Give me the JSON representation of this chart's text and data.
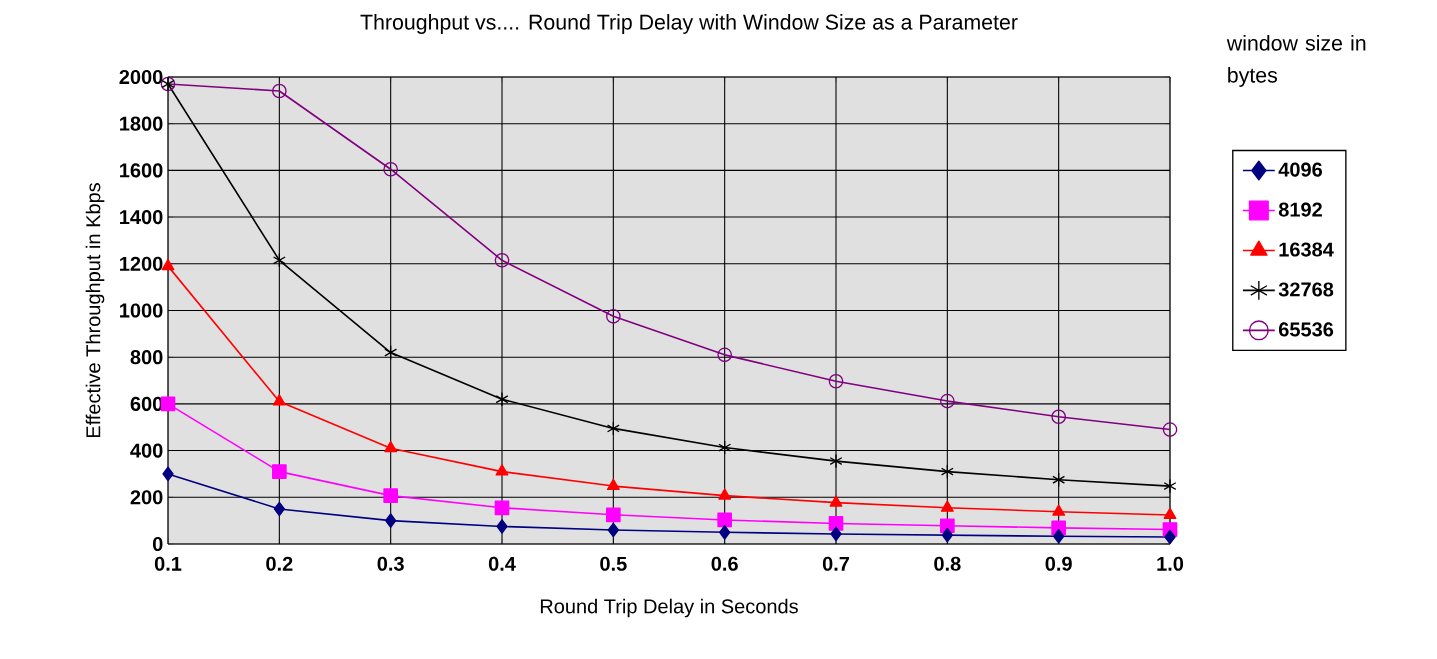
{
  "chart_data": {
    "type": "line",
    "title": "Throughput vs.... Round Trip Delay with Window Size as a Parameter",
    "xlabel": "Round Trip Delay in Seconds",
    "ylabel": "Effective Throughput in Kbps",
    "legend_title": "window size in bytes",
    "legend": "right",
    "grid": true,
    "x": [
      0.1,
      0.2,
      0.3,
      0.4,
      0.5,
      0.6,
      0.7,
      0.8,
      0.9,
      1.0
    ],
    "xlim": [
      0.1,
      1.0
    ],
    "xticks": [
      0.1,
      0.2,
      0.3,
      0.4,
      0.5,
      0.6,
      0.7,
      0.8,
      0.9,
      {
        "value": 1.0,
        "label": "1.0"
      }
    ],
    "ylim": [
      0,
      2000
    ],
    "yticks": [
      0,
      200,
      400,
      600,
      800,
      1000,
      1200,
      1400,
      1600,
      1800,
      2000
    ],
    "series": [
      {
        "name": "4096",
        "color": "#000080",
        "marker": "diamond",
        "values": [
          300,
          150,
          100,
          75,
          60,
          50,
          43,
          38,
          33,
          30
        ]
      },
      {
        "name": "8192",
        "color": "#ff00ff",
        "marker": "square",
        "values": [
          600,
          310,
          207,
          155,
          125,
          103,
          88,
          78,
          69,
          62
        ]
      },
      {
        "name": "16384",
        "color": "#ff0000",
        "marker": "triangle",
        "values": [
          1190,
          610,
          410,
          310,
          248,
          207,
          177,
          155,
          138,
          124
        ]
      },
      {
        "name": "32768",
        "color": "#000000",
        "marker": "cross",
        "values": [
          1970,
          1215,
          820,
          620,
          495,
          413,
          355,
          310,
          275,
          248
        ]
      },
      {
        "name": "65536",
        "color": "#800080",
        "marker": "circle",
        "values": [
          1970,
          1940,
          1605,
          1215,
          975,
          810,
          697,
          612,
          545,
          490
        ]
      }
    ]
  }
}
